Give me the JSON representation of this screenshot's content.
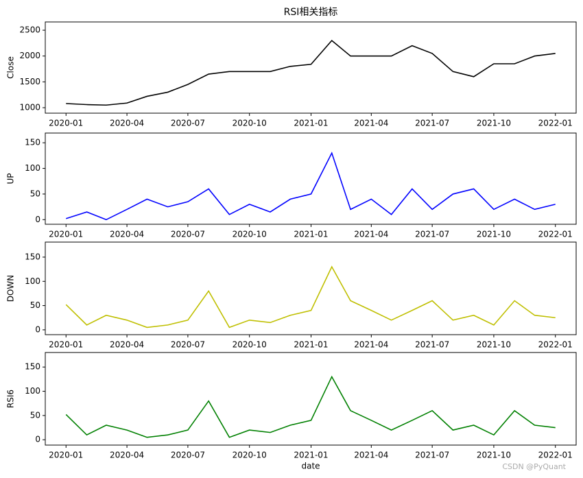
{
  "chart_data": [
    {
      "type": "line",
      "title": "RSI相关指标",
      "ylabel": "Close",
      "x": [
        "2020-01",
        "2020-02",
        "2020-03",
        "2020-04",
        "2020-05",
        "2020-06",
        "2020-07",
        "2020-08",
        "2020-09",
        "2020-10",
        "2020-11",
        "2020-12",
        "2021-01",
        "2021-02",
        "2021-03",
        "2021-04",
        "2021-05",
        "2021-06",
        "2021-07",
        "2021-08",
        "2021-09",
        "2021-10",
        "2021-11",
        "2021-12",
        "2022-01"
      ],
      "series": [
        {
          "name": "Close",
          "color": "#000000",
          "values": [
            1080,
            1060,
            1050,
            1090,
            1220,
            1300,
            1450,
            1650,
            1700,
            1700,
            1700,
            1800,
            1840,
            2300,
            2000,
            2000,
            2000,
            2200,
            2050,
            1700,
            1600,
            1850,
            1850,
            2000,
            2050
          ]
        }
      ],
      "xlim": [
        "2019-12",
        "2022-02"
      ],
      "xticks": [
        "2020-01",
        "2020-04",
        "2020-07",
        "2020-10",
        "2021-01",
        "2021-04",
        "2021-07",
        "2021-10",
        "2022-01"
      ],
      "ylim": [
        894,
        2660
      ],
      "yticks": [
        1000,
        1500,
        2000,
        2500
      ]
    },
    {
      "type": "line",
      "ylabel": "UP",
      "x": [
        "2020-01",
        "2020-02",
        "2020-03",
        "2020-04",
        "2020-05",
        "2020-06",
        "2020-07",
        "2020-08",
        "2020-09",
        "2020-10",
        "2020-11",
        "2020-12",
        "2021-01",
        "2021-02",
        "2021-03",
        "2021-04",
        "2021-05",
        "2021-06",
        "2021-07",
        "2021-08",
        "2021-09",
        "2021-10",
        "2021-11",
        "2021-12",
        "2022-01"
      ],
      "series": [
        {
          "name": "UP",
          "color": "#0000ff",
          "values": [
            2,
            15,
            0,
            20,
            40,
            25,
            35,
            60,
            10,
            30,
            15,
            40,
            50,
            130,
            20,
            40,
            10,
            60,
            20,
            50,
            60,
            20,
            40,
            20,
            30
          ]
        }
      ],
      "xlim": [
        "2019-12",
        "2022-02"
      ],
      "xticks": [
        "2020-01",
        "2020-04",
        "2020-07",
        "2020-10",
        "2021-01",
        "2021-04",
        "2021-07",
        "2021-10",
        "2022-01"
      ],
      "ylim": [
        -9,
        169
      ],
      "yticks": [
        0,
        50,
        100,
        150
      ]
    },
    {
      "type": "line",
      "ylabel": "DOWN",
      "x": [
        "2020-01",
        "2020-02",
        "2020-03",
        "2020-04",
        "2020-05",
        "2020-06",
        "2020-07",
        "2020-08",
        "2020-09",
        "2020-10",
        "2020-11",
        "2020-12",
        "2021-01",
        "2021-02",
        "2021-03",
        "2021-04",
        "2021-05",
        "2021-06",
        "2021-07",
        "2021-08",
        "2021-09",
        "2021-10",
        "2021-11",
        "2021-12",
        "2022-01"
      ],
      "series": [
        {
          "name": "DOWN",
          "color": "#bfbf00",
          "values": [
            52,
            10,
            30,
            20,
            5,
            10,
            20,
            80,
            5,
            20,
            15,
            30,
            40,
            130,
            60,
            40,
            20,
            40,
            60,
            20,
            30,
            10,
            60,
            30,
            25
          ]
        }
      ],
      "xlim": [
        "2019-12",
        "2022-02"
      ],
      "xticks": [
        "2020-01",
        "2020-04",
        "2020-07",
        "2020-10",
        "2021-01",
        "2021-04",
        "2021-07",
        "2021-10",
        "2022-01"
      ],
      "ylim": [
        -10,
        181
      ],
      "yticks": [
        0,
        50,
        100,
        150
      ]
    },
    {
      "type": "line",
      "ylabel": "RSI6",
      "xlabel": "date",
      "x": [
        "2020-01",
        "2020-02",
        "2020-03",
        "2020-04",
        "2020-05",
        "2020-06",
        "2020-07",
        "2020-08",
        "2020-09",
        "2020-10",
        "2020-11",
        "2020-12",
        "2021-01",
        "2021-02",
        "2021-03",
        "2021-04",
        "2021-05",
        "2021-06",
        "2021-07",
        "2021-08",
        "2021-09",
        "2021-10",
        "2021-11",
        "2021-12",
        "2022-01"
      ],
      "series": [
        {
          "name": "RSI6",
          "color": "#008000",
          "values": [
            52,
            10,
            30,
            20,
            5,
            10,
            20,
            80,
            5,
            20,
            15,
            30,
            40,
            130,
            60,
            40,
            20,
            40,
            60,
            20,
            30,
            10,
            60,
            30,
            25
          ]
        }
      ],
      "xlim": [
        "2019-12",
        "2022-02"
      ],
      "xticks": [
        "2020-01",
        "2020-04",
        "2020-07",
        "2020-10",
        "2021-01",
        "2021-04",
        "2021-07",
        "2021-10",
        "2022-01"
      ],
      "ylim": [
        -11,
        180
      ],
      "yticks": [
        0,
        50,
        100,
        150
      ]
    }
  ],
  "watermark": "CSDN @PyQuant"
}
